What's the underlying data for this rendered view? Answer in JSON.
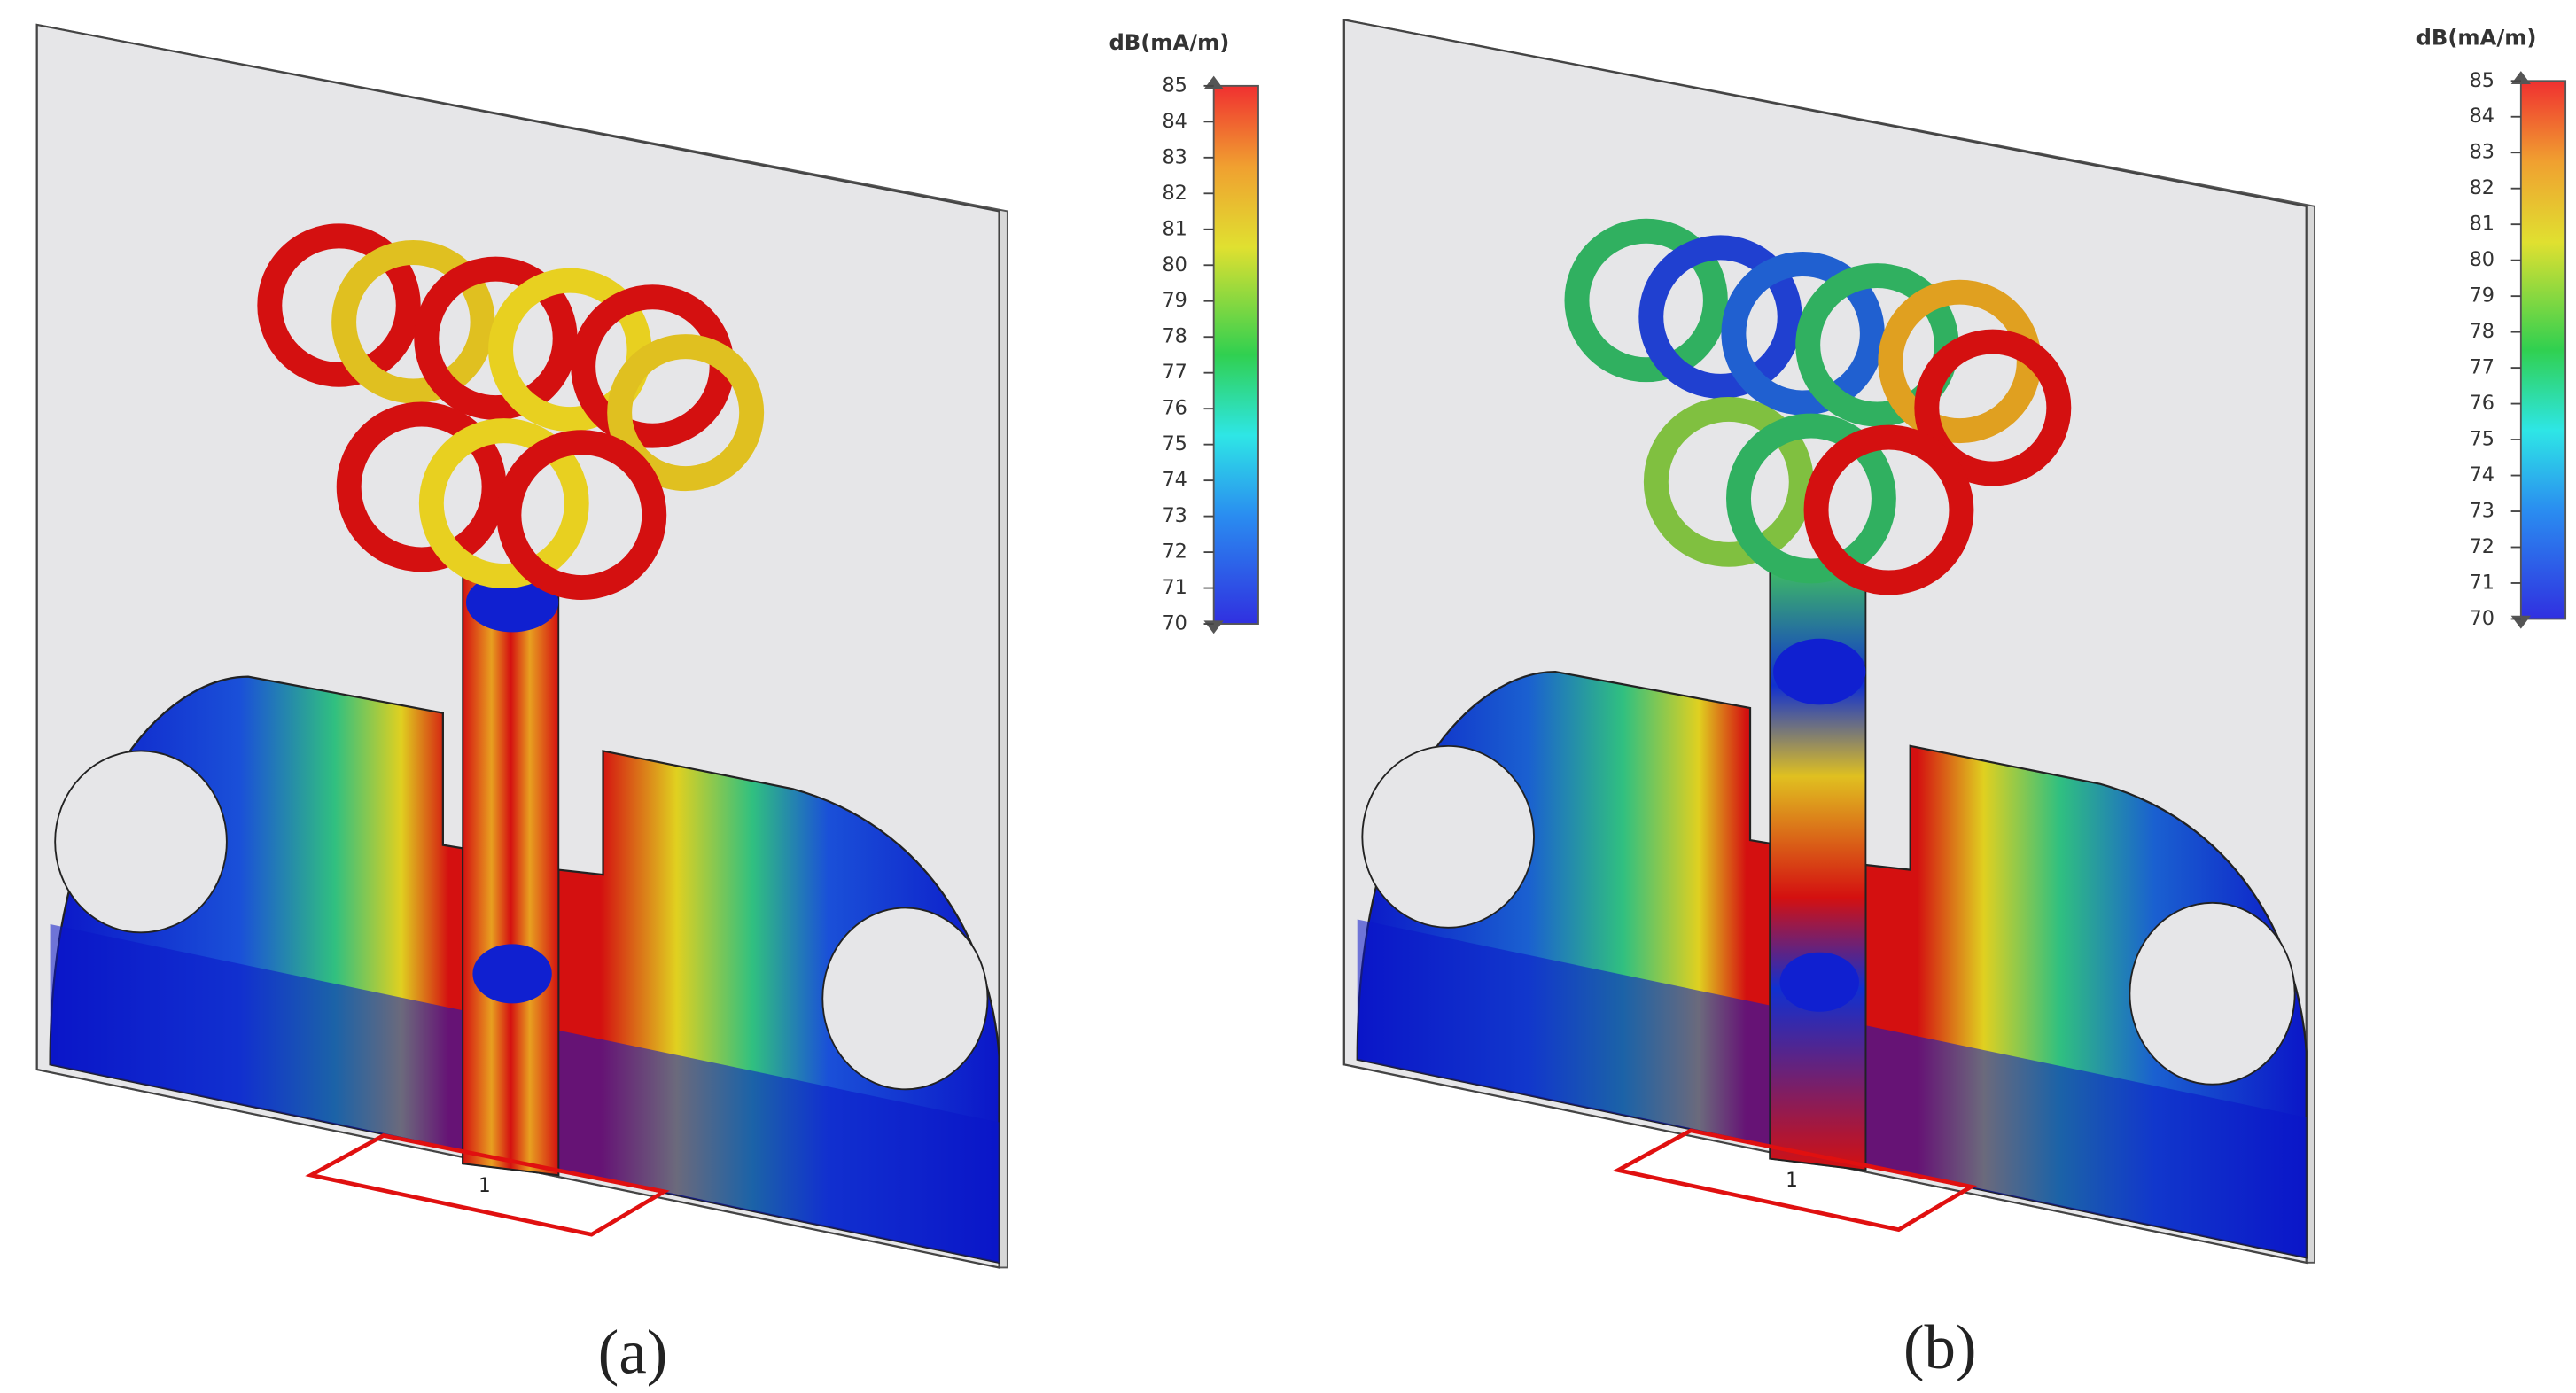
{
  "panels": [
    {
      "colorbar": {
        "title": "dB(mA/m)",
        "ticks": [
          70,
          71,
          72,
          73,
          74,
          75,
          76,
          77,
          78,
          79,
          80,
          81,
          82,
          83,
          84,
          85
        ]
      },
      "port_label": "1",
      "caption": "(a)"
    },
    {
      "colorbar": {
        "title": "dB(mA/m)",
        "ticks": [
          70,
          71,
          72,
          73,
          74,
          75,
          76,
          77,
          78,
          79,
          80,
          81,
          82,
          83,
          84,
          85
        ]
      },
      "port_label": "1",
      "caption": "(b)"
    }
  ]
}
